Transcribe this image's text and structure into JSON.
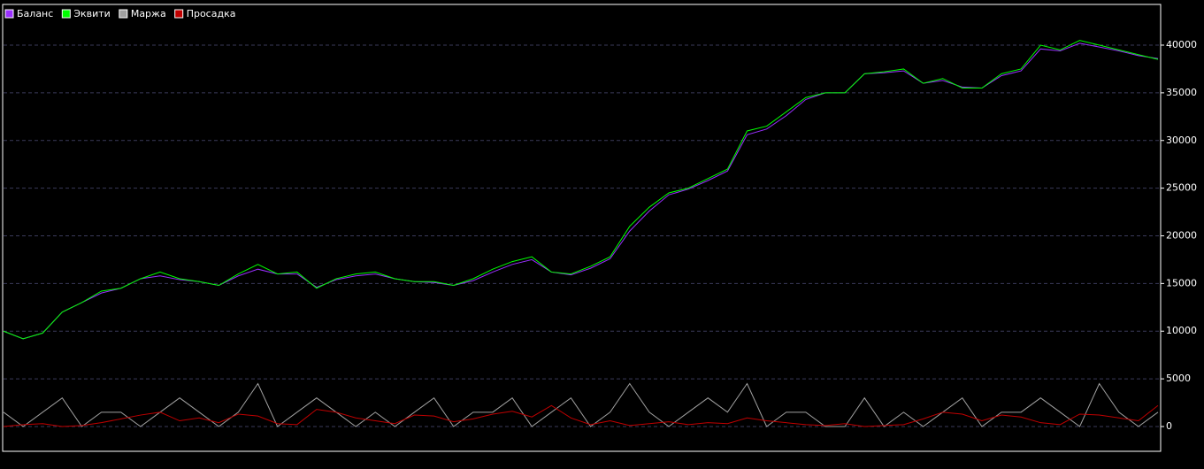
{
  "chart_data": {
    "type": "line",
    "categories": [
      null,
      null,
      null,
      null,
      null,
      null,
      null,
      null,
      null,
      null,
      null,
      null,
      null,
      null,
      null,
      null,
      null,
      null,
      null,
      null,
      null,
      null,
      null,
      null,
      null,
      null,
      null,
      null,
      null,
      null,
      null,
      null,
      null,
      null,
      null,
      null,
      null,
      null,
      null,
      null,
      null,
      null,
      null,
      null,
      null,
      null,
      null,
      null,
      null,
      null,
      null,
      null,
      null,
      null,
      null,
      null,
      null,
      null,
      null,
      null
    ],
    "series": [
      {
        "name": "Баланс",
        "color": "#9a30ff",
        "values": [
          10000,
          9200,
          9800,
          12000,
          13000,
          14000,
          14500,
          15500,
          15800,
          15400,
          15200,
          14800,
          15800,
          16500,
          16000,
          16000,
          14600,
          15400,
          15800,
          16000,
          15500,
          15200,
          15100,
          14800,
          15300,
          16200,
          17000,
          17500,
          16200,
          15900,
          16600,
          17600,
          20500,
          22600,
          24300,
          24900,
          25800,
          26800,
          30600,
          31200,
          32600,
          34300,
          35000,
          35000,
          37000,
          37100,
          37300,
          36000,
          36300,
          35600,
          35500,
          36800,
          37300,
          39600,
          39400,
          40200,
          39800,
          39400,
          38900,
          38600
        ]
      },
      {
        "name": "Эквити",
        "color": "#00ff00",
        "values": [
          10000,
          9200,
          9800,
          12000,
          13000,
          14200,
          14500,
          15500,
          16200,
          15500,
          15200,
          14800,
          16000,
          17000,
          16000,
          16200,
          14500,
          15500,
          16000,
          16200,
          15500,
          15200,
          15200,
          14800,
          15500,
          16500,
          17300,
          17800,
          16200,
          16000,
          16800,
          17800,
          21000,
          23000,
          24500,
          25000,
          26000,
          27000,
          31000,
          31500,
          33000,
          34500,
          35000,
          35000,
          37000,
          37200,
          37500,
          36000,
          36500,
          35500,
          35500,
          37000,
          37500,
          40000,
          39500,
          40500,
          40000,
          39500,
          39000,
          38500
        ]
      },
      {
        "name": "Маржа",
        "color": "#a0a0a0",
        "values": [
          1500,
          0,
          1500,
          3000,
          0,
          1500,
          1500,
          0,
          1500,
          3000,
          1500,
          0,
          1500,
          4500,
          0,
          1500,
          3000,
          1500,
          0,
          1500,
          0,
          1500,
          3000,
          0,
          1500,
          1500,
          3000,
          0,
          1500,
          3000,
          0,
          1500,
          4500,
          1500,
          0,
          1500,
          3000,
          1500,
          4500,
          0,
          1500,
          1500,
          0,
          0,
          3000,
          0,
          1500,
          0,
          1500,
          3000,
          0,
          1500,
          1500,
          3000,
          1500,
          0,
          4500,
          1500,
          0,
          1500
        ]
      },
      {
        "name": "Просадка",
        "color": "#c00000",
        "values": [
          0,
          200,
          300,
          0,
          100,
          400,
          800,
          1200,
          1500,
          600,
          900,
          400,
          1300,
          1100,
          300,
          200,
          1800,
          1500,
          900,
          600,
          300,
          1200,
          1100,
          500,
          800,
          1300,
          1600,
          1000,
          2200,
          900,
          200,
          600,
          100,
          300,
          500,
          200,
          400,
          300,
          900,
          600,
          400,
          200,
          100,
          300,
          0,
          100,
          200,
          800,
          1500,
          1300,
          600,
          1200,
          1000,
          400,
          200,
          1300,
          1200,
          900,
          600,
          2200
        ]
      }
    ],
    "ylim": [
      -2600,
      44270
    ],
    "yticks": [
      0,
      5000,
      10000,
      15000,
      20000,
      25000,
      30000,
      35000,
      40000
    ],
    "grid": true,
    "legend": "top-left"
  }
}
